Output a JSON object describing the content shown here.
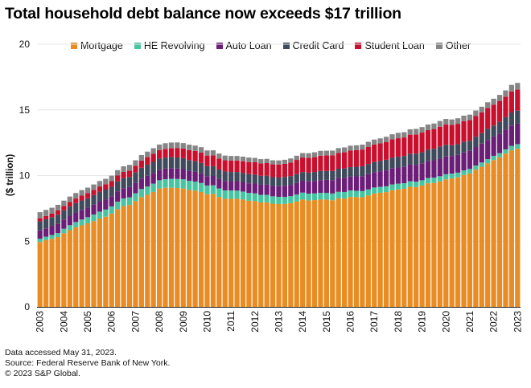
{
  "chart_data": {
    "type": "bar",
    "stacked": true,
    "title": "Total household debt balance now exceeds $17 trillion",
    "ylabel": "($ trillion)",
    "xlabel": "",
    "ylim": [
      0,
      20
    ],
    "yticks": [
      0,
      5,
      10,
      15,
      20
    ],
    "xtick_labels": [
      "2003",
      "2004",
      "2005",
      "2006",
      "2007",
      "2008",
      "2009",
      "2010",
      "2011",
      "2012",
      "2013",
      "2014",
      "2015",
      "2016",
      "2017",
      "2018",
      "2019",
      "2020",
      "2021",
      "2022",
      "2023"
    ],
    "bars_per_year": 4,
    "final_year_bars": 1,
    "categories": [
      "2003Q1",
      "2003Q2",
      "2003Q3",
      "2003Q4",
      "2004Q1",
      "2004Q2",
      "2004Q3",
      "2004Q4",
      "2005Q1",
      "2005Q2",
      "2005Q3",
      "2005Q4",
      "2006Q1",
      "2006Q2",
      "2006Q3",
      "2006Q4",
      "2007Q1",
      "2007Q2",
      "2007Q3",
      "2007Q4",
      "2008Q1",
      "2008Q2",
      "2008Q3",
      "2008Q4",
      "2009Q1",
      "2009Q2",
      "2009Q3",
      "2009Q4",
      "2010Q1",
      "2010Q2",
      "2010Q3",
      "2010Q4",
      "2011Q1",
      "2011Q2",
      "2011Q3",
      "2011Q4",
      "2012Q1",
      "2012Q2",
      "2012Q3",
      "2012Q4",
      "2013Q1",
      "2013Q2",
      "2013Q3",
      "2013Q4",
      "2014Q1",
      "2014Q2",
      "2014Q3",
      "2014Q4",
      "2015Q1",
      "2015Q2",
      "2015Q3",
      "2015Q4",
      "2016Q1",
      "2016Q2",
      "2016Q3",
      "2016Q4",
      "2017Q1",
      "2017Q2",
      "2017Q3",
      "2017Q4",
      "2018Q1",
      "2018Q2",
      "2018Q3",
      "2018Q4",
      "2019Q1",
      "2019Q2",
      "2019Q3",
      "2019Q4",
      "2020Q1",
      "2020Q2",
      "2020Q3",
      "2020Q4",
      "2021Q1",
      "2021Q2",
      "2021Q3",
      "2021Q4",
      "2022Q1",
      "2022Q2",
      "2022Q3",
      "2022Q4",
      "2023Q1"
    ],
    "series": [
      {
        "name": "Mortgage",
        "color": "#E88C23",
        "values": [
          4.94,
          5.08,
          5.18,
          5.32,
          5.61,
          5.84,
          6.05,
          6.21,
          6.36,
          6.53,
          6.73,
          6.87,
          7.1,
          7.44,
          7.67,
          7.76,
          8.05,
          8.36,
          8.54,
          8.75,
          9.01,
          9.07,
          9.07,
          9.05,
          9.01,
          8.9,
          8.85,
          8.75,
          8.57,
          8.6,
          8.37,
          8.23,
          8.23,
          8.23,
          8.17,
          8.08,
          8.05,
          7.95,
          7.96,
          7.86,
          7.83,
          7.84,
          7.9,
          8.02,
          8.17,
          8.1,
          8.13,
          8.17,
          8.17,
          8.12,
          8.26,
          8.25,
          8.37,
          8.36,
          8.35,
          8.48,
          8.63,
          8.69,
          8.74,
          8.88,
          8.94,
          8.99,
          9.14,
          9.12,
          9.24,
          9.41,
          9.44,
          9.56,
          9.71,
          9.78,
          9.86,
          10.04,
          10.16,
          10.44,
          10.67,
          10.93,
          11.18,
          11.39,
          11.67,
          11.92,
          12.04
        ]
      },
      {
        "name": "HE Revolving",
        "color": "#48C4A2",
        "values": [
          0.24,
          0.26,
          0.29,
          0.3,
          0.34,
          0.38,
          0.41,
          0.44,
          0.47,
          0.5,
          0.52,
          0.54,
          0.55,
          0.57,
          0.58,
          0.58,
          0.6,
          0.61,
          0.62,
          0.63,
          0.63,
          0.65,
          0.68,
          0.69,
          0.7,
          0.7,
          0.69,
          0.68,
          0.67,
          0.66,
          0.65,
          0.64,
          0.63,
          0.62,
          0.61,
          0.6,
          0.59,
          0.58,
          0.57,
          0.56,
          0.55,
          0.54,
          0.53,
          0.53,
          0.53,
          0.52,
          0.51,
          0.51,
          0.51,
          0.51,
          0.5,
          0.5,
          0.49,
          0.48,
          0.47,
          0.46,
          0.46,
          0.45,
          0.44,
          0.44,
          0.44,
          0.43,
          0.42,
          0.41,
          0.4,
          0.4,
          0.4,
          0.39,
          0.39,
          0.37,
          0.36,
          0.35,
          0.34,
          0.32,
          0.32,
          0.32,
          0.32,
          0.32,
          0.32,
          0.34,
          0.35
        ]
      },
      {
        "name": "Auto Loan",
        "color": "#6B1E78",
        "values": [
          0.64,
          0.64,
          0.68,
          0.7,
          0.7,
          0.72,
          0.73,
          0.73,
          0.73,
          0.76,
          0.79,
          0.78,
          0.77,
          0.79,
          0.79,
          0.79,
          0.79,
          0.8,
          0.82,
          0.81,
          0.8,
          0.81,
          0.81,
          0.79,
          0.78,
          0.76,
          0.74,
          0.73,
          0.71,
          0.71,
          0.71,
          0.71,
          0.71,
          0.72,
          0.73,
          0.73,
          0.75,
          0.77,
          0.79,
          0.78,
          0.81,
          0.84,
          0.86,
          0.88,
          0.9,
          0.93,
          0.95,
          0.97,
          0.99,
          1.02,
          1.05,
          1.06,
          1.07,
          1.1,
          1.13,
          1.16,
          1.17,
          1.19,
          1.21,
          1.22,
          1.23,
          1.24,
          1.27,
          1.27,
          1.29,
          1.3,
          1.32,
          1.33,
          1.35,
          1.34,
          1.36,
          1.37,
          1.38,
          1.41,
          1.44,
          1.46,
          1.47,
          1.49,
          1.52,
          1.55,
          1.56
        ]
      },
      {
        "name": "Credit Card",
        "color": "#3F4A5C",
        "values": [
          0.69,
          0.69,
          0.69,
          0.7,
          0.7,
          0.7,
          0.71,
          0.72,
          0.71,
          0.72,
          0.73,
          0.74,
          0.73,
          0.75,
          0.77,
          0.77,
          0.79,
          0.82,
          0.84,
          0.85,
          0.85,
          0.84,
          0.84,
          0.85,
          0.84,
          0.82,
          0.81,
          0.8,
          0.76,
          0.74,
          0.73,
          0.73,
          0.7,
          0.7,
          0.7,
          0.7,
          0.68,
          0.68,
          0.67,
          0.68,
          0.66,
          0.67,
          0.67,
          0.68,
          0.66,
          0.67,
          0.68,
          0.7,
          0.68,
          0.7,
          0.71,
          0.73,
          0.71,
          0.73,
          0.75,
          0.78,
          0.76,
          0.78,
          0.81,
          0.83,
          0.82,
          0.83,
          0.84,
          0.87,
          0.85,
          0.87,
          0.88,
          0.93,
          0.89,
          0.82,
          0.81,
          0.82,
          0.77,
          0.79,
          0.8,
          0.86,
          0.84,
          0.89,
          0.93,
          0.99,
          0.99
        ]
      },
      {
        "name": "Student Loan",
        "color": "#C8102E",
        "values": [
          0.24,
          0.25,
          0.26,
          0.32,
          0.33,
          0.34,
          0.35,
          0.37,
          0.39,
          0.4,
          0.4,
          0.41,
          0.42,
          0.45,
          0.47,
          0.48,
          0.51,
          0.55,
          0.58,
          0.61,
          0.64,
          0.66,
          0.69,
          0.72,
          0.73,
          0.76,
          0.78,
          0.8,
          0.81,
          0.83,
          0.84,
          0.85,
          0.87,
          0.87,
          0.88,
          0.92,
          0.94,
          0.95,
          0.96,
          0.97,
          0.99,
          1.0,
          1.03,
          1.08,
          1.11,
          1.12,
          1.13,
          1.16,
          1.19,
          1.19,
          1.2,
          1.23,
          1.26,
          1.26,
          1.28,
          1.31,
          1.34,
          1.34,
          1.36,
          1.38,
          1.41,
          1.41,
          1.44,
          1.46,
          1.49,
          1.48,
          1.5,
          1.51,
          1.54,
          1.54,
          1.55,
          1.56,
          1.58,
          1.57,
          1.58,
          1.58,
          1.59,
          1.59,
          1.57,
          1.6,
          1.6
        ]
      },
      {
        "name": "Other",
        "color": "#858585",
        "values": [
          0.46,
          0.46,
          0.45,
          0.43,
          0.41,
          0.42,
          0.42,
          0.42,
          0.42,
          0.41,
          0.41,
          0.41,
          0.42,
          0.41,
          0.42,
          0.43,
          0.42,
          0.42,
          0.42,
          0.43,
          0.43,
          0.43,
          0.42,
          0.42,
          0.41,
          0.41,
          0.41,
          0.4,
          0.39,
          0.38,
          0.37,
          0.36,
          0.35,
          0.35,
          0.35,
          0.34,
          0.33,
          0.32,
          0.32,
          0.31,
          0.31,
          0.31,
          0.31,
          0.32,
          0.34,
          0.36,
          0.37,
          0.37,
          0.35,
          0.36,
          0.37,
          0.37,
          0.37,
          0.37,
          0.37,
          0.38,
          0.38,
          0.38,
          0.39,
          0.39,
          0.41,
          0.4,
          0.41,
          0.42,
          0.42,
          0.42,
          0.42,
          0.43,
          0.43,
          0.42,
          0.42,
          0.42,
          0.41,
          0.42,
          0.43,
          0.43,
          0.45,
          0.46,
          0.47,
          0.5,
          0.51
        ]
      }
    ]
  },
  "footer": {
    "line1": "Data accessed May 31, 2023.",
    "line2": "Source: Federal Reserve Bank of New York.",
    "line3": "© 2023 S&P Global."
  }
}
